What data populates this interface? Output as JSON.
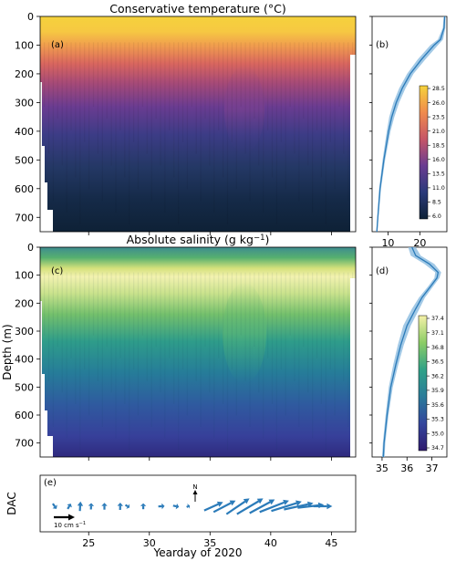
{
  "figure": {
    "xlabel": "Yearday of 2020",
    "ylabel": "Depth (m)",
    "dac_label": "DAC"
  },
  "chart_data": [
    {
      "type": "heatmap",
      "panel": "(a)",
      "title": "Conservative temperature (°C)",
      "xlim": [
        21,
        47
      ],
      "ylim": [
        750,
        0
      ],
      "yticks": [
        0,
        100,
        200,
        300,
        400,
        500,
        600,
        700
      ],
      "xticks": [
        25,
        30,
        35,
        40,
        45
      ],
      "xtick_labels_shown": false,
      "colormap": "thermal",
      "clim": [
        6.0,
        28.5
      ]
    },
    {
      "type": "line",
      "panel": "(b)",
      "description_series": "mean temperature profile with shaded spread",
      "xticks": [
        10,
        20
      ],
      "x_range": [
        5,
        28.5
      ],
      "ylim": [
        750,
        0
      ],
      "depth": [
        0,
        40,
        80,
        100,
        150,
        200,
        250,
        300,
        350,
        400,
        500,
        600,
        700,
        750
      ],
      "mean": [
        27.8,
        27.6,
        26.5,
        24.5,
        20.5,
        17.0,
        14.5,
        12.6,
        11.2,
        10.2,
        8.7,
        7.5,
        6.8,
        6.5
      ],
      "spread": [
        0.3,
        0.4,
        0.8,
        1.2,
        1.2,
        1.0,
        1.0,
        0.9,
        0.8,
        0.6,
        0.4,
        0.3,
        0.2,
        0.2
      ],
      "colorbar": {
        "ticks": [
          "6.0",
          "8.5",
          "11.0",
          "13.5",
          "16.0",
          "18.5",
          "21.0",
          "23.5",
          "26.0",
          "28.5"
        ]
      }
    },
    {
      "type": "heatmap",
      "panel": "(c)",
      "title": "Absolute salinity (g kg⁻¹)",
      "xlim": [
        21,
        47
      ],
      "ylim": [
        750,
        0
      ],
      "yticks": [
        0,
        100,
        200,
        300,
        400,
        500,
        600,
        700
      ],
      "colormap": "haline",
      "clim": [
        34.7,
        37.4
      ]
    },
    {
      "type": "line",
      "panel": "(d)",
      "x_range": [
        34.6,
        37.6
      ],
      "xticks": [
        35,
        36,
        37
      ],
      "ylim": [
        750,
        0
      ],
      "depth": [
        0,
        30,
        60,
        90,
        110,
        140,
        180,
        220,
        280,
        350,
        420,
        500,
        600,
        700,
        750
      ],
      "mean": [
        36.2,
        36.35,
        36.9,
        37.25,
        37.2,
        36.95,
        36.6,
        36.35,
        36.0,
        35.75,
        35.55,
        35.35,
        35.2,
        35.08,
        35.05
      ],
      "spread": [
        0.15,
        0.2,
        0.2,
        0.12,
        0.1,
        0.1,
        0.12,
        0.15,
        0.15,
        0.12,
        0.1,
        0.08,
        0.06,
        0.05,
        0.05
      ],
      "colorbar": {
        "ticks": [
          "34.7",
          "35.0",
          "35.3",
          "35.6",
          "35.9",
          "36.2",
          "36.5",
          "36.8",
          "37.1",
          "37.4"
        ]
      }
    },
    {
      "type": "scatter",
      "panel": "(e)",
      "description": "depth-averaged current vectors",
      "xlim": [
        21,
        47
      ],
      "xticks": [
        25,
        30,
        35,
        40,
        45
      ],
      "scale_label": "10 cm s⁻¹",
      "north_label": "N",
      "vectors_cm_s": [
        {
          "x": 22.2,
          "u": 1.8,
          "v": -2.5
        },
        {
          "x": 23.4,
          "u": 1.5,
          "v": 2.5
        },
        {
          "x": 24.3,
          "u": 0.3,
          "v": 4.5
        },
        {
          "x": 25.2,
          "u": 0.2,
          "v": 3.0
        },
        {
          "x": 26.3,
          "u": 0.0,
          "v": 3.2
        },
        {
          "x": 27.6,
          "u": 0.1,
          "v": 3.5
        },
        {
          "x": 28.2,
          "u": 2.0,
          "v": -1.2
        },
        {
          "x": 29.5,
          "u": 0.0,
          "v": 2.8
        },
        {
          "x": 31.0,
          "u": 3.0,
          "v": 0.2
        },
        {
          "x": 32.2,
          "u": 2.8,
          "v": -0.6
        },
        {
          "x": 33.2,
          "u": 1.4,
          "v": 0.8
        },
        {
          "x": 35.3,
          "u": 9.0,
          "v": 4.0
        },
        {
          "x": 36.2,
          "u": 10.5,
          "v": 5.5
        },
        {
          "x": 37.3,
          "u": 11.0,
          "v": 7.5
        },
        {
          "x": 38.3,
          "u": 12.5,
          "v": 7.5
        },
        {
          "x": 39.3,
          "u": 12.0,
          "v": 6.5
        },
        {
          "x": 40.3,
          "u": 14.0,
          "v": 5.5
        },
        {
          "x": 41.3,
          "u": 14.5,
          "v": 4.5
        },
        {
          "x": 42.3,
          "u": 14.0,
          "v": 3.0
        },
        {
          "x": 43.3,
          "u": 12.5,
          "v": 1.5
        },
        {
          "x": 44.3,
          "u": 9.0,
          "v": 0.0
        }
      ]
    }
  ],
  "colors": {
    "vector": "#2b7bb9",
    "profile_line": "#2b7bb9",
    "profile_band": "#8bbce0"
  }
}
